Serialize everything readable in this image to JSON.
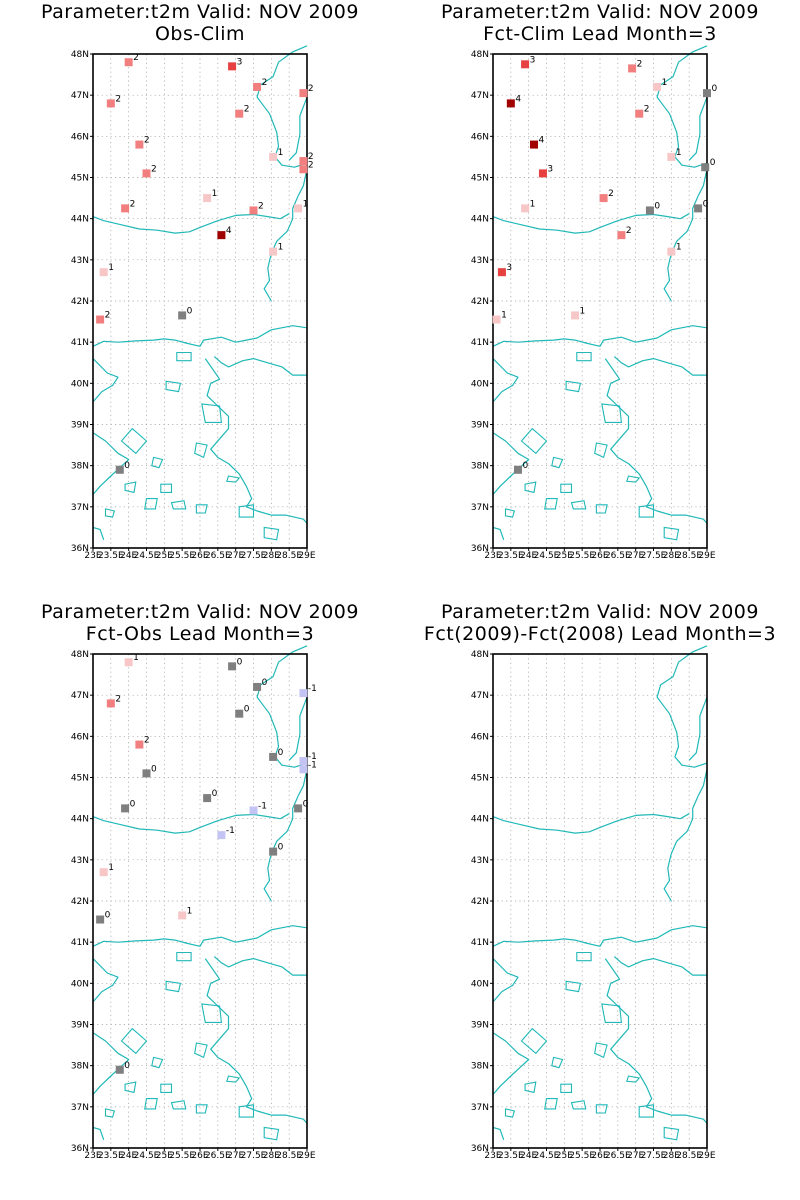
{
  "map": {
    "lon_min": 23,
    "lon_max": 29,
    "lat_min": 36,
    "lat_max": 48,
    "lat_ticks": [
      {
        "v": 48,
        "label": "48N"
      },
      {
        "v": 47,
        "label": "47N"
      },
      {
        "v": 46,
        "label": "46N"
      },
      {
        "v": 45,
        "label": "45N"
      },
      {
        "v": 44,
        "label": "44N"
      },
      {
        "v": 43,
        "label": "43N"
      },
      {
        "v": 42,
        "label": "42N"
      },
      {
        "v": 41,
        "label": "41N"
      },
      {
        "v": 40,
        "label": "40N"
      },
      {
        "v": 39,
        "label": "39N"
      },
      {
        "v": 38,
        "label": "38N"
      },
      {
        "v": 37,
        "label": "37N"
      },
      {
        "v": 36,
        "label": "36N"
      }
    ],
    "lon_ticks": [
      {
        "v": 23,
        "label": "23E"
      },
      {
        "v": 23.5,
        "label": "23.5E"
      },
      {
        "v": 24,
        "label": "24E"
      },
      {
        "v": 24.5,
        "label": "24.5E"
      },
      {
        "v": 25,
        "label": "25E"
      },
      {
        "v": 25.5,
        "label": "25.5E"
      },
      {
        "v": 26,
        "label": "26E"
      },
      {
        "v": 26.5,
        "label": "26.5E"
      },
      {
        "v": 27,
        "label": "27E"
      },
      {
        "v": 27.5,
        "label": "27.5E"
      },
      {
        "v": 28,
        "label": "28E"
      },
      {
        "v": 28.5,
        "label": "28.5E"
      },
      {
        "v": 29,
        "label": "29E"
      }
    ],
    "coast_color": "#20b8b8",
    "grid_color": "#9a9a9a",
    "value_colors": {
      "-1": "#c4c4f4",
      "0": "#7f7f7f",
      "1": "#f7c7c7",
      "2": "#f17f7f",
      "3": "#e64040",
      "4": "#a00000"
    }
  },
  "panels": [
    {
      "title": "Parameter:t2m Valid: NOV 2009",
      "subtitle": "Obs-Clim",
      "stations": [
        {
          "lon": 24.0,
          "lat": 47.8,
          "value": 2
        },
        {
          "lon": 26.9,
          "lat": 47.7,
          "value": 3
        },
        {
          "lon": 27.6,
          "lat": 47.2,
          "value": 2
        },
        {
          "lon": 23.5,
          "lat": 46.8,
          "value": 2
        },
        {
          "lon": 28.9,
          "lat": 47.05,
          "value": 2
        },
        {
          "lon": 27.1,
          "lat": 46.55,
          "value": 2
        },
        {
          "lon": 24.3,
          "lat": 45.8,
          "value": 2
        },
        {
          "lon": 28.05,
          "lat": 45.5,
          "value": 1
        },
        {
          "lon": 28.9,
          "lat": 45.4,
          "value": 2
        },
        {
          "lon": 28.9,
          "lat": 45.2,
          "value": 2
        },
        {
          "lon": 24.5,
          "lat": 45.1,
          "value": 2
        },
        {
          "lon": 26.2,
          "lat": 44.5,
          "value": 1
        },
        {
          "lon": 23.9,
          "lat": 44.25,
          "value": 2
        },
        {
          "lon": 27.5,
          "lat": 44.2,
          "value": 2
        },
        {
          "lon": 28.75,
          "lat": 44.25,
          "value": 1
        },
        {
          "lon": 26.6,
          "lat": 43.6,
          "value": 4
        },
        {
          "lon": 28.05,
          "lat": 43.2,
          "value": 1
        },
        {
          "lon": 23.3,
          "lat": 42.7,
          "value": 1
        },
        {
          "lon": 23.2,
          "lat": 41.55,
          "value": 2
        },
        {
          "lon": 25.5,
          "lat": 41.65,
          "value": 0
        },
        {
          "lon": 23.75,
          "lat": 37.9,
          "value": 0
        }
      ]
    },
    {
      "title": "Parameter:t2m Valid: NOV 2009",
      "subtitle": "Fct-Clim Lead Month=3",
      "stations": [
        {
          "lon": 23.9,
          "lat": 47.75,
          "value": 3
        },
        {
          "lon": 26.9,
          "lat": 47.65,
          "value": 2
        },
        {
          "lon": 27.6,
          "lat": 47.2,
          "value": 1
        },
        {
          "lon": 29.0,
          "lat": 47.05,
          "value": 0
        },
        {
          "lon": 23.5,
          "lat": 46.8,
          "value": 4
        },
        {
          "lon": 27.1,
          "lat": 46.55,
          "value": 2
        },
        {
          "lon": 24.15,
          "lat": 45.8,
          "value": 4
        },
        {
          "lon": 28.0,
          "lat": 45.5,
          "value": 1
        },
        {
          "lon": 28.95,
          "lat": 45.25,
          "value": 0
        },
        {
          "lon": 24.4,
          "lat": 45.1,
          "value": 3
        },
        {
          "lon": 26.1,
          "lat": 44.5,
          "value": 2
        },
        {
          "lon": 23.9,
          "lat": 44.25,
          "value": 1
        },
        {
          "lon": 27.4,
          "lat": 44.2,
          "value": 0
        },
        {
          "lon": 28.75,
          "lat": 44.25,
          "value": 0
        },
        {
          "lon": 26.6,
          "lat": 43.6,
          "value": 2
        },
        {
          "lon": 28.0,
          "lat": 43.2,
          "value": 1
        },
        {
          "lon": 23.25,
          "lat": 42.7,
          "value": 3
        },
        {
          "lon": 23.1,
          "lat": 41.55,
          "value": 1
        },
        {
          "lon": 25.3,
          "lat": 41.65,
          "value": 1
        },
        {
          "lon": 23.7,
          "lat": 37.9,
          "value": 0
        }
      ]
    },
    {
      "title": "Parameter:t2m Valid: NOV 2009",
      "subtitle": "Fct-Obs Lead Month=3",
      "stations": [
        {
          "lon": 24.0,
          "lat": 47.8,
          "value": 1
        },
        {
          "lon": 26.9,
          "lat": 47.7,
          "value": 0
        },
        {
          "lon": 27.6,
          "lat": 47.2,
          "value": 0
        },
        {
          "lon": 28.9,
          "lat": 47.05,
          "value": -1
        },
        {
          "lon": 23.5,
          "lat": 46.8,
          "value": 2
        },
        {
          "lon": 27.1,
          "lat": 46.55,
          "value": 0
        },
        {
          "lon": 24.3,
          "lat": 45.8,
          "value": 2
        },
        {
          "lon": 28.05,
          "lat": 45.5,
          "value": 0
        },
        {
          "lon": 28.9,
          "lat": 45.4,
          "value": -1
        },
        {
          "lon": 28.9,
          "lat": 45.2,
          "value": -1
        },
        {
          "lon": 24.5,
          "lat": 45.1,
          "value": 0
        },
        {
          "lon": 26.2,
          "lat": 44.5,
          "value": 0
        },
        {
          "lon": 23.9,
          "lat": 44.25,
          "value": 0
        },
        {
          "lon": 27.5,
          "lat": 44.2,
          "value": -1
        },
        {
          "lon": 28.75,
          "lat": 44.25,
          "value": 0
        },
        {
          "lon": 26.6,
          "lat": 43.6,
          "value": -1
        },
        {
          "lon": 28.05,
          "lat": 43.2,
          "value": 0
        },
        {
          "lon": 23.3,
          "lat": 42.7,
          "value": 1
        },
        {
          "lon": 23.2,
          "lat": 41.55,
          "value": 0
        },
        {
          "lon": 25.5,
          "lat": 41.65,
          "value": 1
        },
        {
          "lon": 23.75,
          "lat": 37.9,
          "value": 0
        }
      ]
    },
    {
      "title": "Parameter:t2m Valid: NOV 2009",
      "subtitle": "Fct(2009)-Fct(2008) Lead Month=3",
      "stations": []
    }
  ]
}
